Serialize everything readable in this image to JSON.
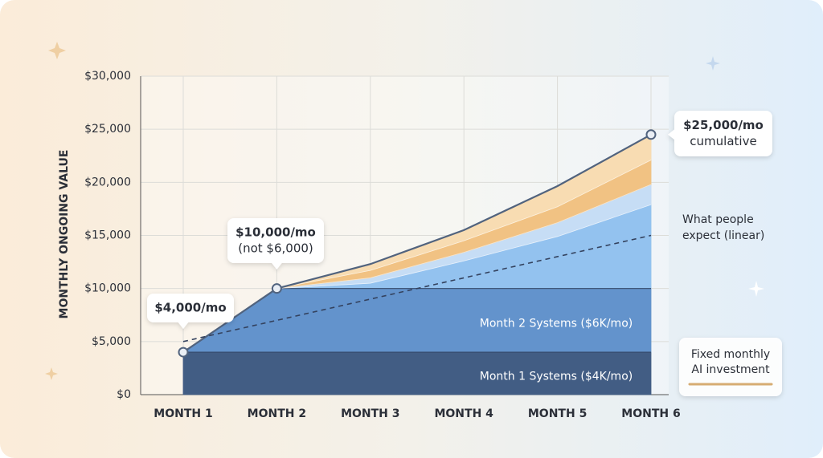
{
  "chart_data": {
    "type": "stacked_area",
    "y_label": "MONTHLY ONGOING VALUE",
    "categories": [
      "MONTH 1",
      "MONTH 2",
      "MONTH 3",
      "MONTH 4",
      "MONTH 5",
      "MONTH 6"
    ],
    "series": [
      {
        "name": "Month 1 Systems ($4K/mo)",
        "color": "#425d84",
        "values": [
          4000,
          4000,
          4000,
          4000,
          4000,
          4000
        ]
      },
      {
        "name": "Month 2 Systems ($6K/mo)",
        "color": "#6393cc",
        "values": [
          0,
          6000,
          6000,
          6000,
          6000,
          6000
        ]
      },
      {
        "color": "#93c2ef",
        "values": [
          0,
          0,
          500,
          2600,
          4900,
          7900
        ]
      },
      {
        "color": "#c6ddf5",
        "values": [
          0,
          0,
          500,
          800,
          1300,
          1900
        ]
      },
      {
        "color": "#f1c283",
        "values": [
          0,
          0,
          700,
          1100,
          1500,
          2300
        ]
      },
      {
        "color": "#f8dcb2",
        "values": [
          0,
          0,
          600,
          1000,
          1950,
          2400
        ]
      }
    ],
    "expected": {
      "label": [
        "What people",
        "expect (linear)"
      ],
      "color": "#34425e",
      "values": [
        5000,
        7000,
        9000,
        11000,
        13000,
        15000
      ]
    },
    "callouts": [
      [
        "$4,000/mo"
      ],
      [
        "$10,000/mo",
        "(not $6,000)"
      ],
      [
        "$25,000/mo",
        "cumulative"
      ]
    ],
    "legend": {
      "label": [
        "Fixed monthly",
        "AI investment"
      ],
      "color": "#d6ac72"
    },
    "ylim": [
      0,
      30000
    ],
    "yticks": [
      {
        "value": 0,
        "label": "$0"
      },
      {
        "value": 5000,
        "label": "$5,000"
      },
      {
        "value": 10000,
        "label": "$10,000"
      },
      {
        "value": 15000,
        "label": "$15,000"
      },
      {
        "value": 20000,
        "label": "$20,000"
      },
      {
        "value": 25000,
        "label": "$25,000"
      },
      {
        "value": 30000,
        "label": "$30,000"
      }
    ],
    "grid": true
  }
}
